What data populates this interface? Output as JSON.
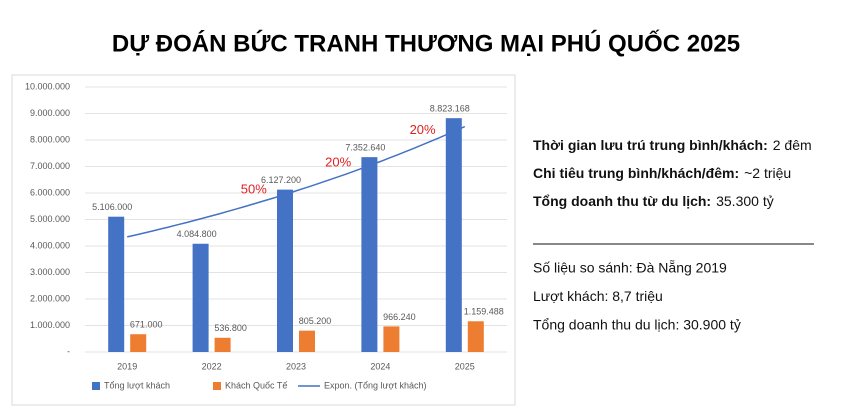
{
  "chart_data": {
    "type": "bar",
    "title": "DỰ ĐOÁN BỨC TRANH THƯƠNG MẠI PHÚ QUỐC 2025",
    "categories": [
      "2019",
      "2022",
      "2023",
      "2024",
      "2025"
    ],
    "series": [
      {
        "name": "Tổng lượt khách",
        "color": "#4472c4",
        "values": [
          5106000,
          4084800,
          6127200,
          7352640,
          8823168
        ],
        "value_labels": [
          "5.106.000",
          "4.084.800",
          "6.127.200",
          "7.352.640",
          "8.823.168"
        ]
      },
      {
        "name": "Khách Quốc Tế",
        "color": "#ed7d31",
        "values": [
          671000,
          536800,
          805200,
          966240,
          1159488
        ],
        "value_labels": [
          "671.000",
          "536.800",
          "805.200",
          "966.240",
          "1.159.488"
        ]
      }
    ],
    "trendline": {
      "name": "Expon. (Tổng lượt khách)",
      "type": "exponential",
      "color": "#4472c4"
    },
    "annotations": [
      "50%",
      "20%",
      "20%"
    ],
    "annotation_color": "#e02020",
    "ylim": [
      0,
      10000000
    ],
    "yticks": [
      {
        "value": 0,
        "label": "-"
      },
      {
        "value": 1000000,
        "label": "1.000.000"
      },
      {
        "value": 2000000,
        "label": "2.000.000"
      },
      {
        "value": 3000000,
        "label": "3.000.000"
      },
      {
        "value": 4000000,
        "label": "4.000.000"
      },
      {
        "value": 5000000,
        "label": "5.000.000"
      },
      {
        "value": 6000000,
        "label": "6.000.000"
      },
      {
        "value": 7000000,
        "label": "7.000.000"
      },
      {
        "value": 8000000,
        "label": "8.000.000"
      },
      {
        "value": 9000000,
        "label": "9.000.000"
      },
      {
        "value": 10000000,
        "label": "10.000.000"
      }
    ],
    "grid": true,
    "legend": "bottom"
  },
  "side_panel": {
    "highlights": [
      {
        "label": "Thời gian lưu trú trung bình/khách:",
        "value": "2 đêm"
      },
      {
        "label": "Chi tiêu trung bình/khách/đêm:",
        "value": "~2 triệu"
      },
      {
        "label": "Tổng doanh thu từ du lịch:",
        "value": "35.300 tỷ"
      }
    ],
    "comparison": [
      "Số liệu so sánh: Đà Nẵng 2019",
      "Lượt khách: 8,7 triệu",
      "Tổng doanh thu du lịch: 30.900 tỷ"
    ]
  }
}
